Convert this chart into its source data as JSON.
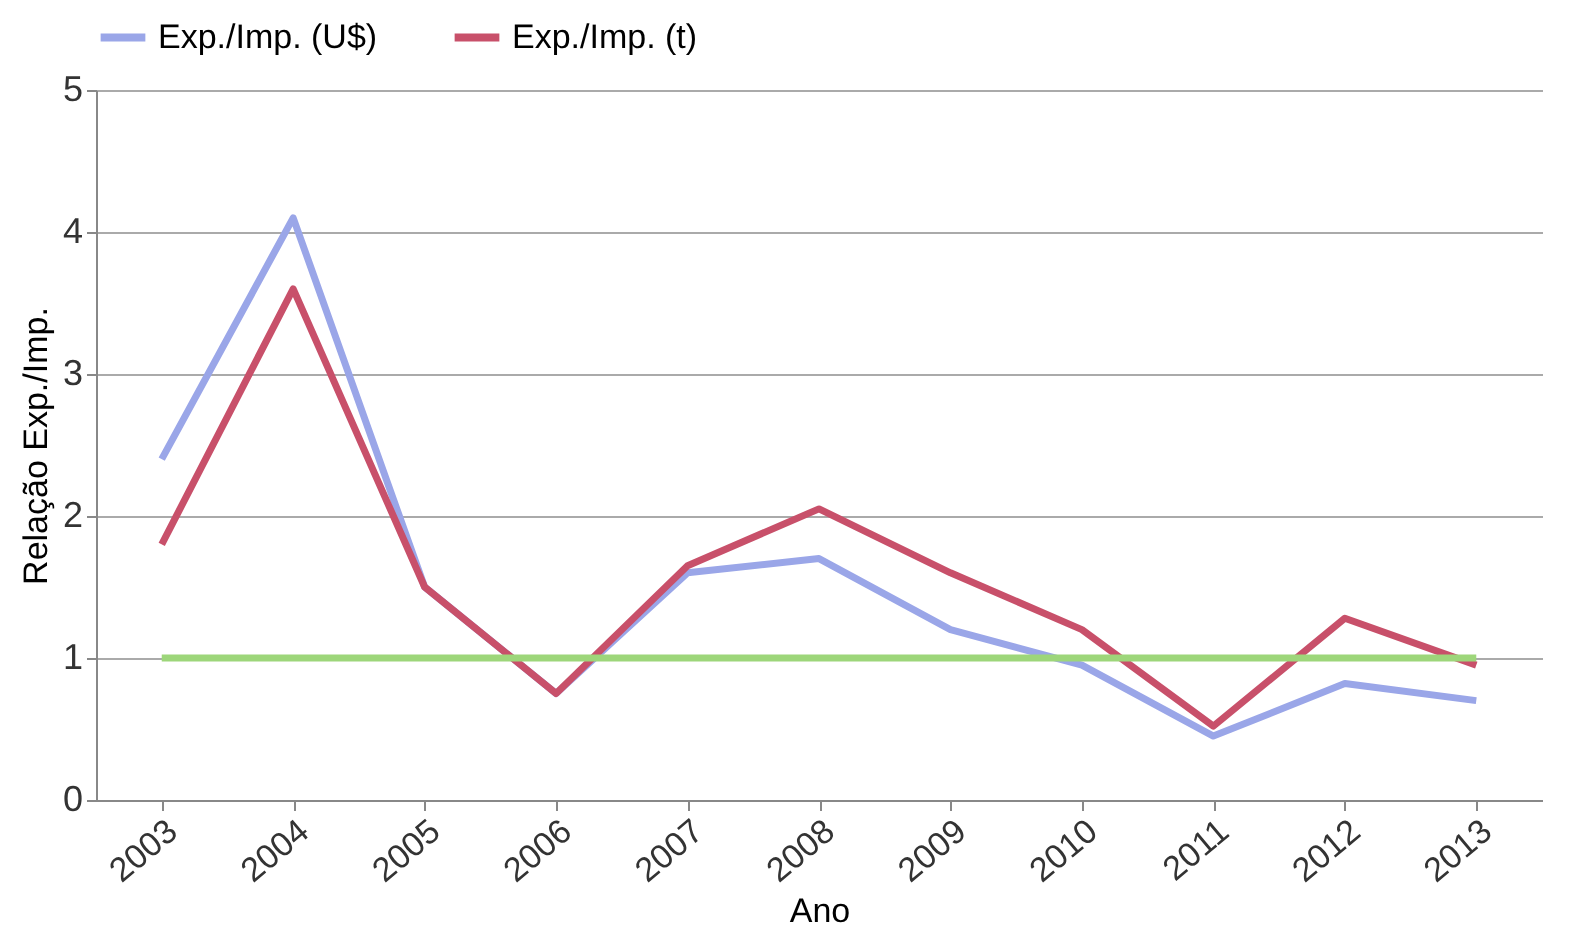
{
  "chart_data": {
    "type": "line",
    "xlabel": "Ano",
    "ylabel": "Relação Exp./Imp.",
    "categories": [
      "2003",
      "2004",
      "2005",
      "2006",
      "2007",
      "2008",
      "2009",
      "2010",
      "2011",
      "2012",
      "2013"
    ],
    "series": [
      {
        "name": "Exp./Imp. (U$)",
        "color": "#9aa6e8",
        "values": [
          2.4,
          4.1,
          1.5,
          0.75,
          1.6,
          1.7,
          1.2,
          0.95,
          0.45,
          0.82,
          0.7
        ]
      },
      {
        "name": "Exp./Imp. (t)",
        "color": "#c8506a",
        "values": [
          1.8,
          3.6,
          1.5,
          0.75,
          1.65,
          2.05,
          1.6,
          1.2,
          0.52,
          1.28,
          0.95
        ]
      },
      {
        "color": "#9dd67a",
        "values": [
          1,
          1,
          1,
          1,
          1,
          1,
          1,
          1,
          1,
          1,
          1
        ]
      }
    ],
    "ylim": [
      0,
      5
    ],
    "yticks": [
      0,
      1,
      2,
      3,
      4,
      5
    ],
    "grid": "y",
    "legend": "top",
    "marker": "none",
    "line_style": "solid"
  }
}
